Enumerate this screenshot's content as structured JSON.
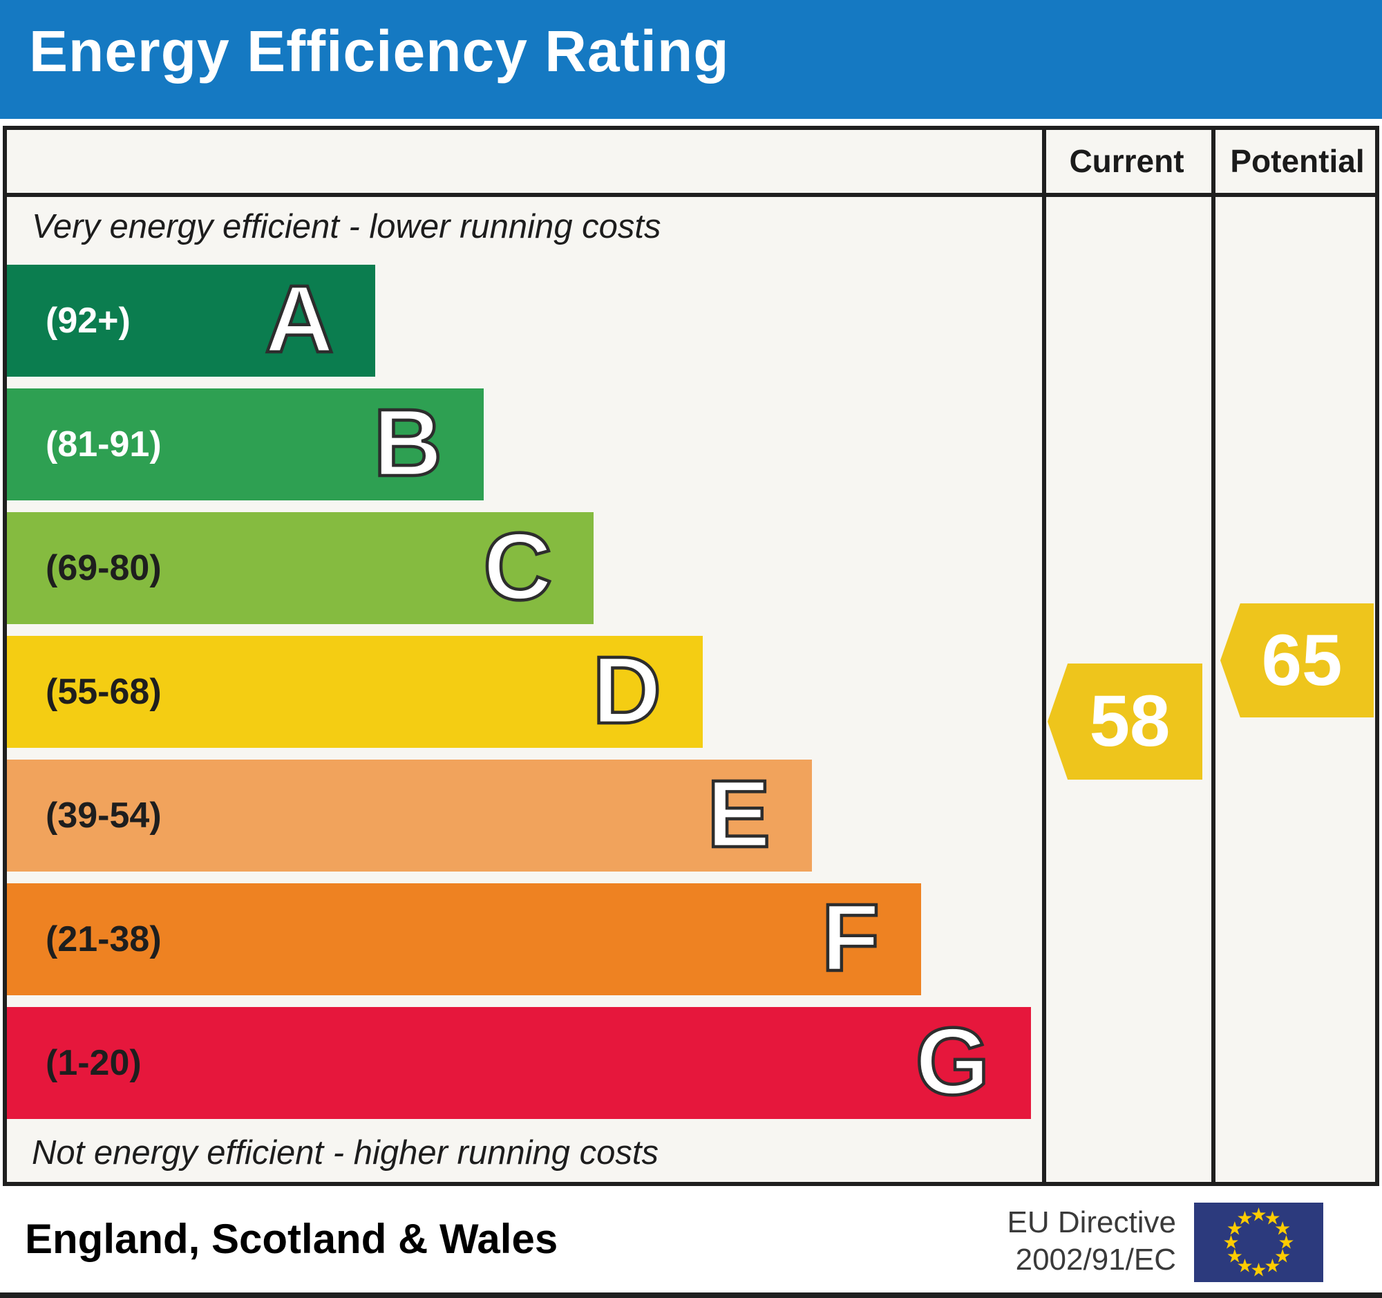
{
  "header": {
    "title": "Energy Efficiency Rating",
    "background_color": "#1579c2"
  },
  "columns": {
    "current": "Current",
    "potential": "Potential"
  },
  "notes": {
    "top": "Very energy efficient - lower running costs",
    "bottom": "Not energy efficient - higher running costs"
  },
  "bands": [
    {
      "letter": "A",
      "range": "(92+)",
      "color": "#0b7d4f",
      "range_color": "#ffffff"
    },
    {
      "letter": "B",
      "range": "(81-91)",
      "color": "#2ea052",
      "range_color": "#ffffff"
    },
    {
      "letter": "C",
      "range": "(69-80)",
      "color": "#85bb40",
      "range_color": "#1e1e1e"
    },
    {
      "letter": "D",
      "range": "(55-68)",
      "color": "#f4cd13",
      "range_color": "#1e1e1e"
    },
    {
      "letter": "E",
      "range": "(39-54)",
      "color": "#f1a35c",
      "range_color": "#1e1e1e"
    },
    {
      "letter": "F",
      "range": "(21-38)",
      "color": "#ee8222",
      "range_color": "#1e1e1e"
    },
    {
      "letter": "G",
      "range": "(1-20)",
      "color": "#e6173c",
      "range_color": "#1e1e1e"
    }
  ],
  "ratings": {
    "current": {
      "label": "Current",
      "value": "58",
      "band": "D",
      "color": "#eec51c"
    },
    "potential": {
      "label": "Potential",
      "value": "65",
      "band": "D",
      "color": "#eec51c"
    }
  },
  "footer": {
    "region": "England, Scotland & Wales",
    "directive_line1": "EU Directive",
    "directive_line2": "2002/91/EC",
    "flag_star": "★",
    "flag_color": "#2c3a7d",
    "flag_star_color": "#ffcc00"
  },
  "chart_data": {
    "type": "bar",
    "title": "Energy Efficiency Rating",
    "categories": [
      "A",
      "B",
      "C",
      "D",
      "E",
      "F",
      "G"
    ],
    "ranges": [
      "92+",
      "81-91",
      "69-80",
      "55-68",
      "39-54",
      "21-38",
      "1-20"
    ],
    "bar_colors": [
      "#0b7d4f",
      "#2ea052",
      "#85bb40",
      "#f4cd13",
      "#f1a35c",
      "#ee8222",
      "#e6173c"
    ],
    "bar_relative_widths": [
      0.36,
      0.47,
      0.57,
      0.68,
      0.79,
      0.89,
      1.0
    ],
    "markers": [
      {
        "name": "Current",
        "value": 58,
        "band": "D",
        "color": "#eec51c"
      },
      {
        "name": "Potential",
        "value": 65,
        "band": "D",
        "color": "#eec51c"
      }
    ],
    "annotations": [
      "Very energy efficient - lower running costs",
      "Not energy efficient - higher running costs"
    ],
    "footer_region": "England, Scotland & Wales",
    "footer_directive": "EU Directive 2002/91/EC",
    "legend_position": "none",
    "grid": false
  }
}
